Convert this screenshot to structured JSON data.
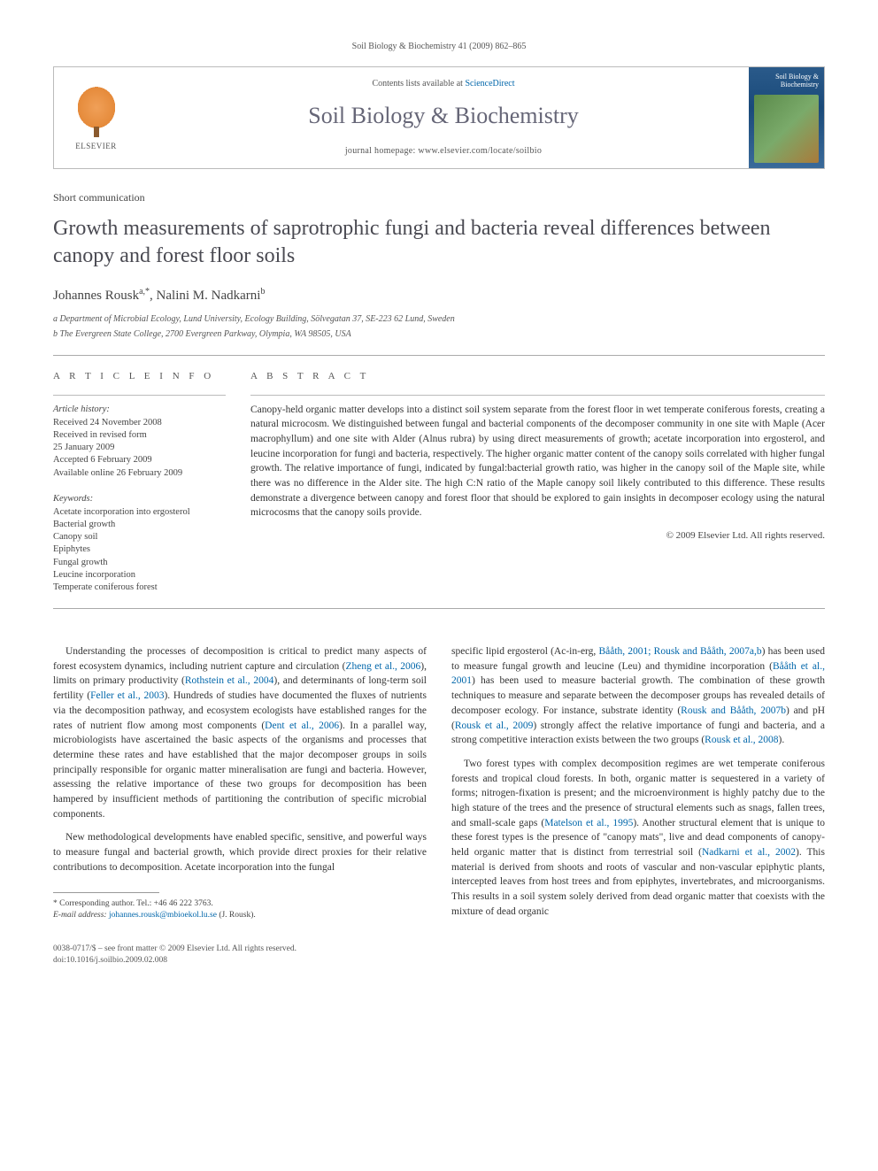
{
  "header": {
    "citation": "Soil Biology & Biochemistry 41 (2009) 862–865",
    "publisher_name": "ELSEVIER",
    "contents_prefix": "Contents lists available at ",
    "contents_link": "ScienceDirect",
    "journal_name": "Soil Biology & Biochemistry",
    "homepage_label": "journal homepage: www.elsevier.com/locate/soilbio",
    "cover_title": "Soil Biology & Biochemistry"
  },
  "article": {
    "type": "Short communication",
    "title": "Growth measurements of saprotrophic fungi and bacteria reveal differences between canopy and forest floor soils",
    "authors_html": "Johannes Rousk",
    "author1": "Johannes Rousk",
    "author1_sup": "a,*",
    "author2": ", Nalini M. Nadkarni",
    "author2_sup": "b",
    "affil_a": "a Department of Microbial Ecology, Lund University, Ecology Building, Sölvegatan 37, SE-223 62 Lund, Sweden",
    "affil_b": "b The Evergreen State College, 2700 Evergreen Parkway, Olympia, WA 98505, USA"
  },
  "info": {
    "section_label": "A R T I C L E   I N F O",
    "history_label": "Article history:",
    "history": [
      "Received 24 November 2008",
      "Received in revised form",
      "25 January 2009",
      "Accepted 6 February 2009",
      "Available online 26 February 2009"
    ],
    "keywords_label": "Keywords:",
    "keywords": [
      "Acetate incorporation into ergosterol",
      "Bacterial growth",
      "Canopy soil",
      "Epiphytes",
      "Fungal growth",
      "Leucine incorporation",
      "Temperate coniferous forest"
    ]
  },
  "abstract": {
    "section_label": "A B S T R A C T",
    "text": "Canopy-held organic matter develops into a distinct soil system separate from the forest floor in wet temperate coniferous forests, creating a natural microcosm. We distinguished between fungal and bacterial components of the decomposer community in one site with Maple (Acer macrophyllum) and one site with Alder (Alnus rubra) by using direct measurements of growth; acetate incorporation into ergosterol, and leucine incorporation for fungi and bacteria, respectively. The higher organic matter content of the canopy soils correlated with higher fungal growth. The relative importance of fungi, indicated by fungal:bacterial growth ratio, was higher in the canopy soil of the Maple site, while there was no difference in the Alder site. The high C:N ratio of the Maple canopy soil likely contributed to this difference. These results demonstrate a divergence between canopy and forest floor that should be explored to gain insights in decomposer ecology using the natural microcosms that the canopy soils provide.",
    "copyright": "© 2009 Elsevier Ltd. All rights reserved."
  },
  "body": {
    "left": {
      "p1a": "Understanding the processes of decomposition is critical to predict many aspects of forest ecosystem dynamics, including nutrient capture and circulation (",
      "p1_l1": "Zheng et al., 2006",
      "p1b": "), limits on primary productivity (",
      "p1_l2": "Rothstein et al., 2004",
      "p1c": "), and determinants of long-term soil fertility (",
      "p1_l3": "Feller et al., 2003",
      "p1d": "). Hundreds of studies have documented the fluxes of nutrients via the decomposition pathway, and ecosystem ecologists have established ranges for the rates of nutrient flow among most components (",
      "p1_l4": "Dent et al., 2006",
      "p1e": "). In a parallel way, microbiologists have ascertained the basic aspects of the organisms and processes that determine these rates and have established that the major decomposer groups in soils principally responsible for organic matter mineralisation are fungi and bacteria. However, assessing the relative importance of these two groups for decomposition has been hampered by insufficient methods of partitioning the contribution of specific microbial components.",
      "p2": "New methodological developments have enabled specific, sensitive, and powerful ways to measure fungal and bacterial growth, which provide direct proxies for their relative contributions to decomposition. Acetate incorporation into the fungal"
    },
    "right": {
      "p1a": "specific lipid ergosterol (Ac-in-erg, ",
      "p1_l1": "Bååth, 2001; Rousk and Bååth, 2007a,b",
      "p1b": ") has been used to measure fungal growth and leucine (Leu) and thymidine incorporation (",
      "p1_l2": "Bååth et al., 2001",
      "p1c": ") has been used to measure bacterial growth. The combination of these growth techniques to measure and separate between the decomposer groups has revealed details of decomposer ecology. For instance, substrate identity (",
      "p1_l3": "Rousk and Bååth, 2007b",
      "p1d": ") and pH (",
      "p1_l4": "Rousk et al., 2009",
      "p1e": ") strongly affect the relative importance of fungi and bacteria, and a strong competitive interaction exists between the two groups (",
      "p1_l5": "Rousk et al., 2008",
      "p1f": ").",
      "p2a": "Two forest types with complex decomposition regimes are wet temperate coniferous forests and tropical cloud forests. In both, organic matter is sequestered in a variety of forms; nitrogen-fixation is present; and the microenvironment is highly patchy due to the high stature of the trees and the presence of structural elements such as snags, fallen trees, and small-scale gaps (",
      "p2_l1": "Matelson et al., 1995",
      "p2b": "). Another structural element that is unique to these forest types is the presence of \"canopy mats\", live and dead components of canopy-held organic matter that is distinct from terrestrial soil (",
      "p2_l2": "Nadkarni et al., 2002",
      "p2c": "). This material is derived from shoots and roots of vascular and non-vascular epiphytic plants, intercepted leaves from host trees and from epiphytes, invertebrates, and microorganisms. This results in a soil system solely derived from dead organic matter that coexists with the mixture of dead organic"
    }
  },
  "footnote": {
    "corr": "* Corresponding author. Tel.: +46 46 222 3763.",
    "email_label": "E-mail address: ",
    "email": "johannes.rousk@mbioekol.lu.se",
    "email_suffix": " (J. Rousk)."
  },
  "footer": {
    "line1": "0038-0717/$ – see front matter © 2009 Elsevier Ltd. All rights reserved.",
    "line2": "doi:10.1016/j.soilbio.2009.02.008"
  },
  "colors": {
    "link": "#0066aa",
    "rule": "#aaaaaa",
    "text": "#333333",
    "heading": "#4a4a52"
  }
}
